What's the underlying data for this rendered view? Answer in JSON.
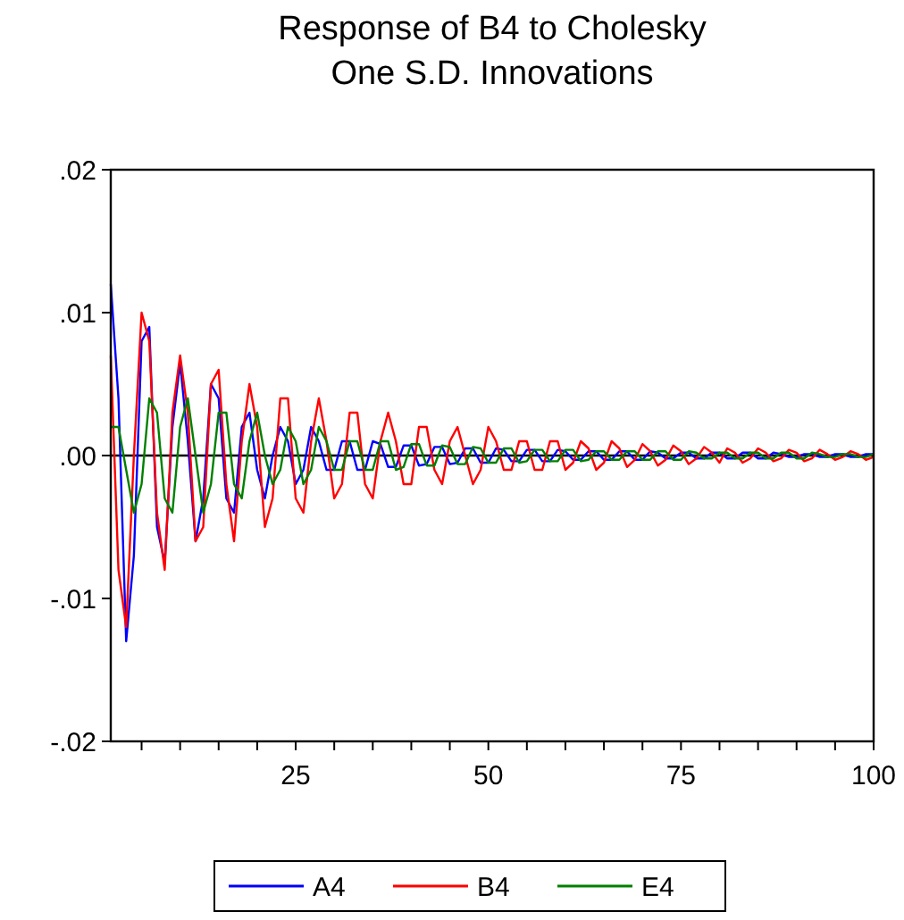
{
  "chart_data": {
    "type": "line",
    "title": "Response of B4 to Cholesky\nOne S.D. Innovations",
    "x": [
      1,
      2,
      3,
      4,
      5,
      6,
      7,
      8,
      9,
      10,
      11,
      12,
      13,
      14,
      15,
      16,
      17,
      18,
      19,
      20,
      21,
      22,
      23,
      24,
      25,
      26,
      27,
      28,
      29,
      30,
      31,
      32,
      33,
      34,
      35,
      36,
      37,
      38,
      39,
      40,
      41,
      42,
      43,
      44,
      45,
      46,
      47,
      48,
      49,
      50,
      51,
      52,
      53,
      54,
      55,
      56,
      57,
      58,
      59,
      60,
      61,
      62,
      63,
      64,
      65,
      66,
      67,
      68,
      69,
      70,
      71,
      72,
      73,
      74,
      75,
      76,
      77,
      78,
      79,
      80,
      81,
      82,
      83,
      84,
      85,
      86,
      87,
      88,
      89,
      90,
      91,
      92,
      93,
      94,
      95,
      96,
      97,
      98,
      99,
      100
    ],
    "series": [
      {
        "name": "A4",
        "color": "#0000ff",
        "values": [
          0.012,
          0.004,
          -0.013,
          -0.007,
          0.008,
          0.009,
          -0.005,
          -0.0075,
          0.002,
          0.0065,
          0.001,
          -0.006,
          -0.003,
          0.005,
          0.004,
          -0.003,
          -0.004,
          0.002,
          0.003,
          -0.001,
          -0.003,
          0,
          0.002,
          0.001,
          -0.002,
          -0.001,
          0.002,
          0.001,
          -0.001,
          -0.001,
          0.001,
          0.001,
          -0.001,
          -0.001,
          0.001,
          0.0008,
          -0.0008,
          -0.0008,
          0.0007,
          0.0007,
          -0.0007,
          -0.0006,
          0.0006,
          0.0006,
          -0.0006,
          -0.0005,
          0.0005,
          0.0005,
          -0.0005,
          -0.0005,
          0.0005,
          0.0004,
          -0.0004,
          -0.0004,
          0.0004,
          0.0004,
          -0.0004,
          -0.0004,
          0.0004,
          0.0003,
          -0.0003,
          -0.0003,
          0.0003,
          0.0003,
          -0.0003,
          -0.0003,
          0.0003,
          0.0003,
          -0.0003,
          -0.0003,
          0.0003,
          0.0002,
          -0.0002,
          -0.0002,
          0.0002,
          0.0002,
          -0.0002,
          -0.0002,
          0.0002,
          0.0002,
          -0.0002,
          -0.0002,
          0.0002,
          0.0002,
          -0.0002,
          -0.0002,
          0.0002,
          0.0001,
          -0.0001,
          -0.0001,
          0.0001,
          0.0001,
          -0.0001,
          -0.0001,
          0.0001,
          0.0001,
          -0.0001,
          -0.0001,
          0.0001,
          0.0001
        ]
      },
      {
        "name": "B4",
        "color": "#ff0000",
        "values": [
          0.007,
          -0.008,
          -0.012,
          0,
          0.01,
          0.008,
          -0.004,
          -0.008,
          0.003,
          0.007,
          0.003,
          -0.006,
          -0.005,
          0.005,
          0.006,
          -0.002,
          -0.006,
          0.001,
          0.005,
          0.002,
          -0.005,
          -0.003,
          0.004,
          0.004,
          -0.003,
          -0.004,
          0.001,
          0.004,
          0.001,
          -0.003,
          -0.002,
          0.003,
          0.003,
          -0.002,
          -0.003,
          0.001,
          0.003,
          0.001,
          -0.002,
          -0.002,
          0.002,
          0.002,
          -0.001,
          -0.002,
          0.001,
          0.002,
          0,
          -0.002,
          -0.001,
          0.002,
          0.001,
          -0.001,
          -0.001,
          0.001,
          0.001,
          -0.001,
          -0.001,
          0.001,
          0.001,
          -0.001,
          -0.0005,
          0.001,
          0.0005,
          -0.001,
          -0.0005,
          0.001,
          0.0005,
          -0.0008,
          -0.0003,
          0.0008,
          0.0003,
          -0.0007,
          -0.0003,
          0.0007,
          0.0003,
          -0.0006,
          -0.0002,
          0.0006,
          0.0002,
          -0.0005,
          0.0005,
          0.0002,
          -0.0005,
          -0.0002,
          0.0005,
          0.0002,
          -0.0004,
          -0.0002,
          0.0004,
          0.0002,
          -0.0004,
          -0.0002,
          0.0004,
          0.0001,
          -0.0003,
          -0.0001,
          0.0003,
          0.0001,
          -0.0003,
          -0.0001
        ]
      },
      {
        "name": "E4",
        "color": "#008000",
        "values": [
          0.002,
          0.002,
          -0.001,
          -0.004,
          -0.002,
          0.004,
          0.003,
          -0.003,
          -0.004,
          0.002,
          0.004,
          0,
          -0.004,
          -0.002,
          0.003,
          0.003,
          -0.002,
          -0.003,
          0.001,
          0.003,
          0,
          -0.002,
          -0.001,
          0.002,
          0.001,
          -0.002,
          -0.001,
          0.002,
          0.001,
          -0.001,
          -0.001,
          0.001,
          0.001,
          -0.001,
          -0.001,
          0.001,
          0.001,
          -0.001,
          -0.0008,
          0.0008,
          0.0008,
          -0.0007,
          -0.0007,
          0.0007,
          0.0006,
          -0.0006,
          -0.0006,
          0.0006,
          0.0005,
          -0.0005,
          -0.0005,
          0.0005,
          0.0005,
          -0.0005,
          -0.0004,
          0.0004,
          0.0004,
          -0.0004,
          -0.0004,
          0.0004,
          0.0004,
          -0.0004,
          -0.0003,
          0.0003,
          0.0003,
          -0.0003,
          -0.0003,
          0.0003,
          0.0003,
          -0.0003,
          -0.0003,
          0.0003,
          0.0003,
          -0.0003,
          -0.0003,
          0.0003,
          0.0002,
          -0.0002,
          -0.0002,
          0.0002,
          0.0002,
          -0.0002,
          -0.0002,
          0.0002,
          0.0002,
          -0.0002,
          -0.0002,
          0.0002,
          0.0002,
          -0.0002,
          -0.0002,
          0.0002,
          0.0001,
          -0.0001,
          -0.0001,
          0.0001,
          0.0001,
          -0.0001,
          -0.0001,
          0.0001
        ]
      }
    ],
    "xlim": [
      1,
      100
    ],
    "xticks": [
      {
        "value": 5,
        "label": null
      },
      {
        "value": 10,
        "label": null
      },
      {
        "value": 15,
        "label": null
      },
      {
        "value": 20,
        "label": null
      },
      25,
      {
        "value": 30,
        "label": null
      },
      {
        "value": 35,
        "label": null
      },
      {
        "value": 40,
        "label": null
      },
      {
        "value": 45,
        "label": null
      },
      50,
      {
        "value": 55,
        "label": null
      },
      {
        "value": 60,
        "label": null
      },
      {
        "value": 65,
        "label": null
      },
      {
        "value": 70,
        "label": null
      },
      75,
      {
        "value": 80,
        "label": null
      },
      {
        "value": 85,
        "label": null
      },
      {
        "value": 90,
        "label": null
      },
      {
        "value": 95,
        "label": null
      },
      100
    ],
    "ylim": [
      -0.02,
      0.02
    ],
    "yticks": [
      {
        "value": -0.02,
        "label": "-.02"
      },
      {
        "value": -0.01,
        "label": "-.01"
      },
      {
        "value": 0,
        "label": ".00"
      },
      {
        "value": 0.01,
        "label": ".01"
      },
      {
        "value": 0.02,
        "label": ".02"
      }
    ],
    "ref_lines": [
      {
        "axis": "y",
        "value": 0,
        "color": "#000000"
      }
    ],
    "grid": false,
    "legend": "bottom",
    "marker": "none",
    "line_style": "solid"
  }
}
